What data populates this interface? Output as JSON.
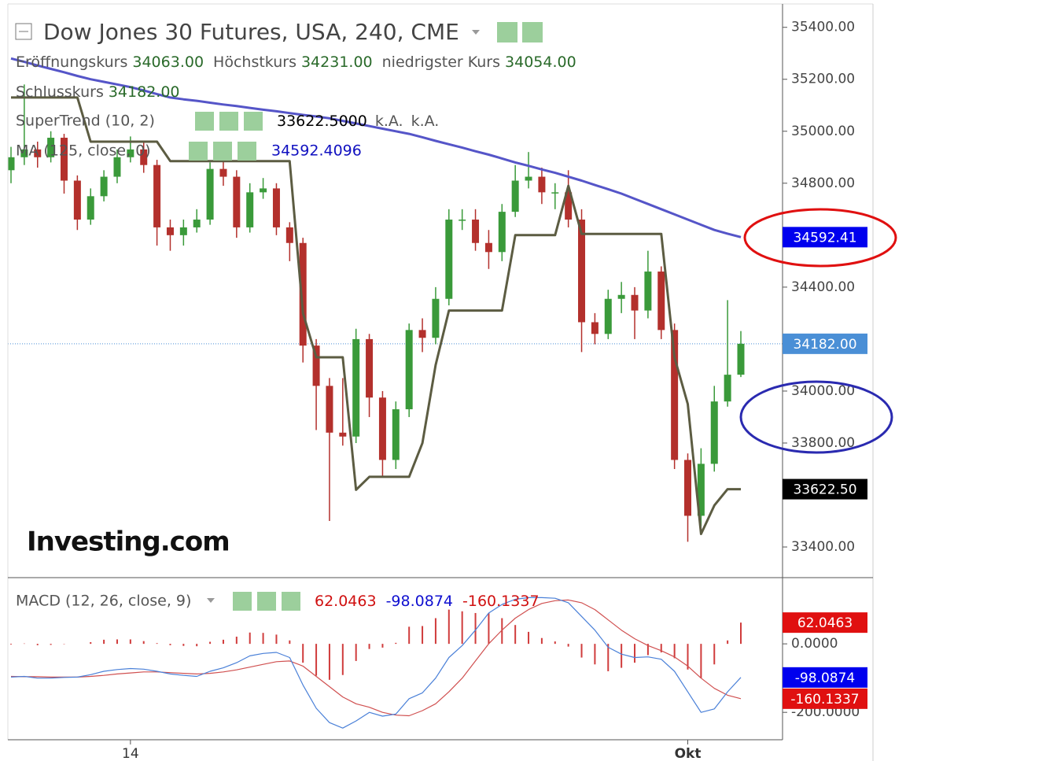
{
  "header": {
    "title": "Dow Jones 30 Futures, USA, 240, CME",
    "ohlc": [
      {
        "label": "Eröffnungskurs",
        "value": "34063.00"
      },
      {
        "label": "Höchstkurs",
        "value": "34231.00"
      },
      {
        "label": "niedrigster Kurs",
        "value": "34054.00"
      },
      {
        "label": "Schlusskurs",
        "value": "34182.00"
      }
    ]
  },
  "logo": "Investing.com",
  "chart_data": [
    {
      "type": "candlestick",
      "up_color": "#3a9a3a",
      "down_color": "#b3302c",
      "open": [
        34850,
        34900,
        34930,
        34900,
        34975,
        34810,
        34660,
        34750,
        34825,
        34900,
        34930,
        34870,
        34630,
        34600,
        34630,
        34660,
        34855,
        34825,
        34630,
        34765,
        34780,
        34630,
        34570,
        34175,
        34020,
        33840,
        33825,
        34200,
        33975,
        33735,
        33930,
        34235,
        34205,
        34355,
        34660,
        34660,
        34570,
        34535,
        34690,
        34810,
        34825,
        34765,
        34765,
        34660,
        34265,
        34220,
        34355,
        34370,
        34310,
        34460,
        34235,
        33735,
        33520,
        33720,
        33960,
        34063
      ],
      "high": [
        34940,
        35180,
        34960,
        35000,
        34990,
        34830,
        34780,
        34850,
        34930,
        34980,
        34960,
        34890,
        34660,
        34660,
        34700,
        34880,
        34890,
        34850,
        34800,
        34820,
        34800,
        34650,
        34590,
        34200,
        34050,
        34050,
        34240,
        34220,
        34000,
        33960,
        34260,
        34280,
        34400,
        34700,
        34700,
        34700,
        34620,
        34720,
        34870,
        34920,
        34860,
        34800,
        34850,
        34700,
        34300,
        34390,
        34420,
        34400,
        34540,
        34480,
        34260,
        33760,
        33780,
        34020,
        34350,
        34231
      ],
      "low": [
        34800,
        34870,
        34860,
        34880,
        34760,
        34620,
        34640,
        34730,
        34800,
        34880,
        34840,
        34560,
        34540,
        34560,
        34610,
        34640,
        34790,
        34590,
        34610,
        34740,
        34600,
        34500,
        34110,
        33850,
        33500,
        33790,
        33800,
        33900,
        33670,
        33700,
        33900,
        34150,
        34180,
        34330,
        34620,
        34540,
        34470,
        34500,
        34670,
        34780,
        34720,
        34700,
        34630,
        34150,
        34180,
        34200,
        34300,
        34200,
        34280,
        34200,
        33700,
        33420,
        33480,
        33690,
        33940,
        34054
      ],
      "close": [
        34900,
        34930,
        34900,
        34975,
        34810,
        34660,
        34750,
        34825,
        34900,
        34930,
        34870,
        34630,
        34600,
        34630,
        34660,
        34855,
        34825,
        34630,
        34765,
        34780,
        34630,
        34570,
        34175,
        34020,
        33840,
        33825,
        34200,
        33975,
        33735,
        33930,
        34235,
        34205,
        34355,
        34660,
        34660,
        34570,
        34535,
        34690,
        34810,
        34825,
        34765,
        34765,
        34660,
        34265,
        34220,
        34355,
        34370,
        34310,
        34460,
        34235,
        33735,
        33520,
        33720,
        33960,
        34063,
        34182
      ],
      "series": [
        {
          "name": "SuperTrend (10, 2)",
          "legend_values": [
            "33622.5000",
            "k.A.",
            "k.A."
          ],
          "color": "#5c5c42",
          "values": [
            35130,
            35130,
            35130,
            35130,
            35130,
            35130,
            34960,
            34960,
            34960,
            34960,
            34960,
            34960,
            34885,
            34885,
            34885,
            34885,
            34885,
            34885,
            34885,
            34885,
            34885,
            34885,
            34300,
            34130,
            34130,
            34130,
            33620,
            33670,
            33670,
            33670,
            33670,
            33800,
            34100,
            34310,
            34310,
            34310,
            34310,
            34310,
            34600,
            34600,
            34600,
            34600,
            34790,
            34605,
            34605,
            34605,
            34605,
            34605,
            34605,
            34605,
            34130,
            33950,
            33450,
            33560,
            33622.5,
            33622.5
          ]
        },
        {
          "name": "MA (125, close, 0)",
          "legend_values": [
            "34592.4096"
          ],
          "color": "#5555c8",
          "values": [
            35280,
            35267,
            35253,
            35240,
            35227,
            35213,
            35200,
            35190,
            35180,
            35170,
            35157,
            35143,
            35130,
            35123,
            35117,
            35110,
            35103,
            35097,
            35090,
            35083,
            35077,
            35070,
            35063,
            35057,
            35050,
            35040,
            35030,
            35020,
            35010,
            35000,
            34990,
            34977,
            34963,
            34950,
            34937,
            34923,
            34910,
            34895,
            34880,
            34867,
            34853,
            34840,
            34825,
            34810,
            34793,
            34777,
            34760,
            34740,
            34720,
            34700,
            34680,
            34660,
            34640,
            34620,
            34606,
            34592.41
          ]
        }
      ],
      "ylim": [
        33285,
        35490
      ],
      "yticks": [
        {
          "value": 33400,
          "label": "33400.00"
        },
        {
          "value": 33800,
          "label": "33800.00"
        },
        {
          "value": 34000,
          "label": "34000.00"
        },
        {
          "value": 34400,
          "label": "34400.00"
        },
        {
          "value": 34800,
          "label": "34800.00"
        },
        {
          "value": 35000,
          "label": "35000.00"
        },
        {
          "value": 35200,
          "label": "35200.00"
        },
        {
          "value": 35400,
          "label": "35400.00"
        }
      ],
      "price_labels": [
        {
          "value": 34592.41,
          "label": "34592.41",
          "color": "#0000ee"
        },
        {
          "value": 34182,
          "label": "34182.00",
          "color": "#4a8fd6"
        },
        {
          "value": 33622.5,
          "label": "33622.50",
          "color": "#000000"
        }
      ]
    },
    {
      "type": "macd",
      "title": "MACD (12, 26, close, 9)",
      "categories": [
        null,
        null,
        null,
        null,
        null,
        null,
        null,
        null,
        null,
        "14",
        null,
        null,
        null,
        null,
        null,
        null,
        null,
        null,
        null,
        null,
        null,
        null,
        null,
        null,
        null,
        null,
        null,
        null,
        null,
        null,
        null,
        null,
        null,
        null,
        null,
        null,
        null,
        null,
        null,
        null,
        null,
        null,
        null,
        null,
        null,
        null,
        null,
        null,
        null,
        null,
        null,
        "Okt",
        null,
        null,
        null,
        null
      ],
      "histogram": {
        "color": "#d03c3c",
        "legend_value": "62.0463",
        "values": [
          -2,
          1,
          -4,
          -3,
          -1,
          0,
          5,
          12,
          13,
          13,
          8,
          2,
          -4,
          -6,
          -7,
          6,
          12,
          21,
          33,
          32,
          27,
          10,
          -55,
          -93,
          -105,
          -91,
          -50,
          -15,
          -11,
          3,
          50,
          52,
          75,
          100,
          95,
          90,
          90,
          75,
          55,
          35,
          17,
          7,
          -8,
          -40,
          -60,
          -80,
          -70,
          -55,
          -33,
          -25,
          -42,
          -75,
          -100,
          -60,
          10,
          62.0463
        ]
      },
      "macd": {
        "color": "#4a80d8",
        "legend_value": "-98.0874",
        "values": [
          -97,
          -95,
          -100,
          -100,
          -98,
          -97,
          -90,
          -80,
          -75,
          -72,
          -74,
          -80,
          -88,
          -92,
          -95,
          -80,
          -70,
          -55,
          -35,
          -28,
          -25,
          -40,
          -120,
          -188,
          -230,
          -246,
          -225,
          -200,
          -211,
          -205,
          -160,
          -143,
          -100,
          -40,
          -5,
          40,
          90,
          115,
          130,
          135,
          135,
          133,
          120,
          80,
          40,
          -10,
          -30,
          -40,
          -38,
          -45,
          -80,
          -140,
          -200,
          -190,
          -140,
          -98.0874
        ]
      },
      "signal": {
        "color": "#d05050",
        "legend_value": "-160.1337",
        "values": [
          -95,
          -96,
          -96,
          -97,
          -97,
          -97,
          -95,
          -92,
          -88,
          -85,
          -82,
          -82,
          -84,
          -86,
          -88,
          -86,
          -82,
          -76,
          -68,
          -60,
          -52,
          -50,
          -65,
          -95,
          -125,
          -155,
          -175,
          -185,
          -200,
          -208,
          -210,
          -195,
          -175,
          -140,
          -100,
          -50,
          0,
          40,
          75,
          100,
          118,
          126,
          128,
          120,
          100,
          70,
          40,
          15,
          -5,
          -20,
          -38,
          -65,
          -100,
          -130,
          -150,
          -160.1337
        ]
      },
      "ylim": [
        -280,
        191
      ],
      "yticks": [
        {
          "value": 0,
          "label": "0.0000"
        },
        {
          "value": -200,
          "label": "-200.0000"
        }
      ],
      "price_labels": [
        {
          "value": 62.0463,
          "label": "62.0463",
          "color": "#e01010"
        },
        {
          "value": -98.0874,
          "label": "-98.0874",
          "color": "#0000ee"
        },
        {
          "value": -160.1337,
          "label": "-160.1337",
          "color": "#e01010"
        }
      ]
    }
  ]
}
